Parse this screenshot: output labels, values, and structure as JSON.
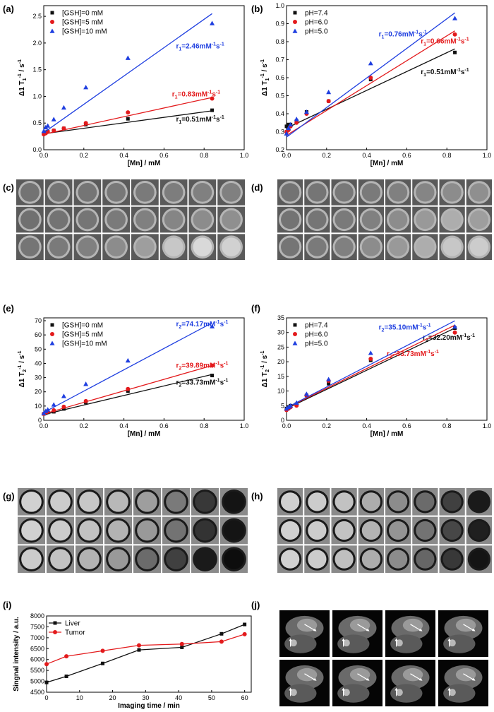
{
  "panel_labels": [
    "(a)",
    "(b)",
    "(c)",
    "(d)",
    "(e)",
    "(f)",
    "(g)",
    "(h)",
    "(i)",
    "(j)"
  ],
  "colors": {
    "black": "#111111",
    "red": "#e31a1c",
    "blue": "#1f3fe0"
  },
  "chart_data": [
    {
      "id": "a",
      "type": "scatter",
      "xlabel": "[Mn] / mM",
      "ylabel_main": "Δ1 T",
      "ylabel_sub": "1",
      "ylabel_sup": "-1",
      "ylabel_tail": " / s",
      "ylabel_tail_sup": "-1",
      "xlim": [
        0,
        1.0
      ],
      "ylim": [
        0,
        2.7
      ],
      "xticks": [
        "0.0",
        "0.2",
        "0.4",
        "0.6",
        "0.8",
        "1.0"
      ],
      "xtick_values": [
        0,
        0.2,
        0.4,
        0.6,
        0.8,
        1.0
      ],
      "yticks": [
        "0.0",
        "0.5",
        "1.0",
        "1.5",
        "2.0",
        "2.5"
      ],
      "ytick_values": [
        0,
        0.5,
        1.0,
        1.5,
        2.0,
        2.5
      ],
      "legend": "top-left",
      "series": [
        {
          "name": "[GSH]=0 mM",
          "color": "black",
          "marker": "square",
          "x": [
            0,
            0.01,
            0.02,
            0.05,
            0.1,
            0.21,
            0.42,
            0.84
          ],
          "y": [
            0.3,
            0.33,
            0.34,
            0.36,
            0.4,
            0.47,
            0.58,
            0.74
          ],
          "fit": [
            0.3,
            0.73
          ],
          "annotation": {
            "r": "r",
            "sub": "1",
            "value": "=0.51mM",
            "sup1": "-1",
            "s": "s",
            "sup2": "-1",
            "ax": 0.66,
            "ay": 0.53
          }
        },
        {
          "name": "[GSH]=5 mM",
          "color": "red",
          "marker": "circle",
          "x": [
            0,
            0.01,
            0.02,
            0.05,
            0.1,
            0.21,
            0.42,
            0.84
          ],
          "y": [
            0.29,
            0.31,
            0.34,
            0.36,
            0.4,
            0.5,
            0.7,
            0.96
          ],
          "fit": [
            0.29,
            0.98
          ],
          "annotation": {
            "r": "r",
            "sub": "1",
            "value": "=0.83mM",
            "sup1": "-1",
            "s": "s",
            "sup2": "-1",
            "ax": 0.64,
            "ay": 1.0
          }
        },
        {
          "name": "[GSH]=10 mM",
          "color": "blue",
          "marker": "triangle",
          "x": [
            0,
            0.01,
            0.02,
            0.05,
            0.1,
            0.21,
            0.42,
            0.84
          ],
          "y": [
            0.35,
            0.42,
            0.45,
            0.57,
            0.79,
            1.17,
            1.72,
            2.37
          ],
          "fit": [
            0.32,
            2.55
          ],
          "annotation": {
            "r": "r",
            "sub": "1",
            "value": "=2.46mM",
            "sup1": "-1",
            "s": "s",
            "sup2": "-1",
            "ax": 0.66,
            "ay": 1.9
          }
        }
      ]
    },
    {
      "id": "b",
      "type": "scatter",
      "xlabel": "[Mn] / mM",
      "ylabel_main": "Δ1 T",
      "ylabel_sub": "1",
      "ylabel_sup": "-1",
      "ylabel_tail": " / s",
      "ylabel_tail_sup": "-1",
      "xlim": [
        0,
        1.0
      ],
      "ylim": [
        0.2,
        1.0
      ],
      "xticks": [
        "0.0",
        "0.2",
        "0.4",
        "0.6",
        "0.8",
        "1.0"
      ],
      "xtick_values": [
        0,
        0.2,
        0.4,
        0.6,
        0.8,
        1.0
      ],
      "yticks": [
        "0.2",
        "0.3",
        "0.4",
        "0.5",
        "0.6",
        "0.7",
        "0.8",
        "0.9",
        "1.0"
      ],
      "ytick_values": [
        0.2,
        0.3,
        0.4,
        0.5,
        0.6,
        0.7,
        0.8,
        0.9,
        1.0
      ],
      "legend": "top-left",
      "series": [
        {
          "name": "pH=7.4",
          "color": "black",
          "marker": "square",
          "x": [
            0,
            0.01,
            0.02,
            0.05,
            0.1,
            0.21,
            0.42,
            0.84
          ],
          "y": [
            0.33,
            0.34,
            0.34,
            0.36,
            0.41,
            0.47,
            0.59,
            0.74
          ],
          "fit": [
            0.32,
            0.76
          ],
          "annotation": {
            "r": "r",
            "sub": "1",
            "value": "=0.51mM",
            "sup1": "-1",
            "s": "s",
            "sup2": "-1",
            "ax": 0.67,
            "ay": 0.62
          }
        },
        {
          "name": "pH=6.0",
          "color": "red",
          "marker": "circle",
          "x": [
            0,
            0.01,
            0.02,
            0.05,
            0.1,
            0.21,
            0.42,
            0.84
          ],
          "y": [
            0.3,
            0.31,
            0.33,
            0.35,
            0.4,
            0.47,
            0.6,
            0.84
          ],
          "fit": [
            0.28,
            0.86
          ],
          "annotation": {
            "r": "r",
            "sub": "1",
            "value": "=0.66mM",
            "sup1": "-1",
            "s": "s",
            "sup2": "-1",
            "ax": 0.67,
            "ay": 0.79
          }
        },
        {
          "name": "pH=5.0",
          "color": "blue",
          "marker": "triangle",
          "x": [
            0,
            0.01,
            0.02,
            0.05,
            0.1,
            0.21,
            0.42,
            0.84
          ],
          "y": [
            0.29,
            0.32,
            0.34,
            0.37,
            0.41,
            0.52,
            0.68,
            0.93
          ],
          "fit": [
            0.27,
            0.96
          ],
          "annotation": {
            "r": "r",
            "sub": "1",
            "value": "=0.76mM",
            "sup1": "-1",
            "s": "s",
            "sup2": "-1",
            "ax": 0.46,
            "ay": 0.83
          }
        }
      ]
    },
    {
      "id": "e",
      "type": "scatter",
      "xlabel": "[Mn] / mM",
      "ylabel_main": "Δ1 T",
      "ylabel_sub": "2",
      "ylabel_sup": "-1",
      "ylabel_tail": " / s",
      "ylabel_tail_sup": "-1",
      "xlim": [
        0,
        1.0
      ],
      "ylim": [
        0,
        72
      ],
      "xticks": [
        "0.0",
        "0.2",
        "0.4",
        "0.6",
        "0.8",
        "1.0"
      ],
      "xtick_values": [
        0,
        0.2,
        0.4,
        0.6,
        0.8,
        1.0
      ],
      "yticks": [
        "0",
        "10",
        "20",
        "30",
        "40",
        "50",
        "60",
        "70"
      ],
      "ytick_values": [
        0,
        10,
        20,
        30,
        40,
        50,
        60,
        70
      ],
      "legend": "top-left",
      "series": [
        {
          "name": "[GSH]=0 mM",
          "color": "black",
          "marker": "square",
          "x": [
            0,
            0.01,
            0.02,
            0.05,
            0.1,
            0.21,
            0.42,
            0.84
          ],
          "y": [
            4.5,
            5,
            5.5,
            6,
            8,
            12.5,
            20.5,
            31.5
          ],
          "fit": [
            4.0,
            32.2
          ],
          "annotation": {
            "r": "r",
            "sub": "2",
            "value": "=33.73mM",
            "sup1": "-1",
            "s": "s",
            "sup2": "-1",
            "ax": 0.66,
            "ay": 25
          }
        },
        {
          "name": "[GSH]=5 mM",
          "color": "red",
          "marker": "circle",
          "x": [
            0,
            0.01,
            0.02,
            0.05,
            0.1,
            0.21,
            0.42,
            0.84
          ],
          "y": [
            4.5,
            5.5,
            6,
            7,
            9.5,
            13.5,
            22,
            38.5
          ],
          "fit": [
            4.5,
            38.5
          ],
          "annotation": {
            "r": "r",
            "sub": "2",
            "value": "=39.89mM",
            "sup1": "-1",
            "s": "s",
            "sup2": "-1",
            "ax": 0.66,
            "ay": 37
          }
        },
        {
          "name": "[GSH]=10 mM",
          "color": "blue",
          "marker": "triangle",
          "x": [
            0,
            0.01,
            0.02,
            0.05,
            0.1,
            0.21,
            0.42,
            0.84
          ],
          "y": [
            5,
            6.5,
            7.5,
            11,
            17,
            25.5,
            42,
            66
          ],
          "fit": [
            5.5,
            68.5
          ],
          "annotation": {
            "r": "r",
            "sub": "2",
            "value": "=74.17mM",
            "sup1": "-1",
            "s": "s",
            "sup2": "-1",
            "ax": 0.66,
            "ay": 66
          }
        }
      ]
    },
    {
      "id": "f",
      "type": "scatter",
      "xlabel": "[Mn] / mM",
      "ylabel_main": "Δ1 T",
      "ylabel_sub": "2",
      "ylabel_sup": "-1",
      "ylabel_tail": " / s",
      "ylabel_tail_sup": "-1",
      "xlim": [
        0,
        1.0
      ],
      "ylim": [
        0,
        35
      ],
      "xticks": [
        "0.0",
        "0.2",
        "0.4",
        "0.6",
        "0.8",
        "1.0"
      ],
      "xtick_values": [
        0,
        0.2,
        0.4,
        0.6,
        0.8,
        1.0
      ],
      "yticks": [
        "0",
        "5",
        "10",
        "15",
        "20",
        "25",
        "30",
        "35"
      ],
      "ytick_values": [
        0,
        5,
        10,
        15,
        20,
        25,
        30,
        35
      ],
      "legend": "top-left",
      "series": [
        {
          "name": "pH=7.4",
          "color": "black",
          "marker": "square",
          "x": [
            0,
            0.01,
            0.02,
            0.05,
            0.1,
            0.21,
            0.42,
            0.84
          ],
          "y": [
            4,
            4.5,
            5,
            5.5,
            8.5,
            12.5,
            20.5,
            31.5
          ],
          "fit": [
            4.0,
            31.5
          ],
          "annotation": {
            "r": "r",
            "sub": "2",
            "value": "=32.20mM",
            "sup1": "-1",
            "s": "s",
            "sup2": "-1",
            "ax": 0.68,
            "ay": 27.5
          }
        },
        {
          "name": "pH=6.0",
          "color": "red",
          "marker": "circle",
          "x": [
            0,
            0.01,
            0.02,
            0.05,
            0.1,
            0.21,
            0.42,
            0.84
          ],
          "y": [
            3.5,
            4,
            4.5,
            5,
            8.5,
            13.5,
            21,
            30
          ],
          "fit": [
            4.2,
            32.5
          ],
          "annotation": {
            "r": "r",
            "sub": "2",
            "value": "=33.73mM",
            "sup1": "-1",
            "s": "s",
            "sup2": "-1",
            "ax": 0.5,
            "ay": 22
          }
        },
        {
          "name": "pH=5.0",
          "color": "blue",
          "marker": "triangle",
          "x": [
            0,
            0.01,
            0.02,
            0.05,
            0.1,
            0.21,
            0.42,
            0.84
          ],
          "y": [
            4,
            4.5,
            5,
            6,
            9,
            14,
            23,
            32
          ],
          "fit": [
            4.3,
            34.0
          ],
          "annotation": {
            "r": "r",
            "sub": "2",
            "value": "=35.10mM",
            "sup1": "-1",
            "s": "s",
            "sup2": "-1",
            "ax": 0.46,
            "ay": 31
          }
        }
      ]
    },
    {
      "id": "i",
      "type": "line",
      "xlabel": "Imaging time / min",
      "ylabel": "Singnal intensity / a.u.",
      "xlim": [
        0,
        62
      ],
      "ylim": [
        4500,
        8000
      ],
      "xticks": [
        "0",
        "10",
        "20",
        "30",
        "40",
        "50",
        "60"
      ],
      "xtick_values": [
        0,
        10,
        20,
        30,
        40,
        50,
        60
      ],
      "yticks": [
        "4500",
        "5000",
        "5500",
        "6000",
        "6500",
        "7000",
        "7500",
        "8000"
      ],
      "ytick_values": [
        4500,
        5000,
        5500,
        6000,
        6500,
        7000,
        7500,
        8000
      ],
      "legend": "top-left",
      "series": [
        {
          "name": "Liver",
          "color": "black",
          "marker": "square",
          "x": [
            0,
            6,
            17,
            28,
            41,
            53,
            60
          ],
          "y": [
            4950,
            5230,
            5820,
            6440,
            6560,
            7180,
            7610
          ]
        },
        {
          "name": "Tumor",
          "color": "red",
          "marker": "circle",
          "x": [
            0,
            6,
            17,
            28,
            41,
            53,
            60
          ],
          "y": [
            5790,
            6150,
            6400,
            6650,
            6710,
            6820,
            7160
          ]
        }
      ]
    }
  ],
  "phantom_grids": [
    {
      "id": "c",
      "rows": 3,
      "cols": 8,
      "intensity": [
        [
          0.45,
          0.46,
          0.46,
          0.47,
          0.48,
          0.49,
          0.5,
          0.5
        ],
        [
          0.44,
          0.45,
          0.46,
          0.48,
          0.5,
          0.52,
          0.55,
          0.56
        ],
        [
          0.46,
          0.48,
          0.5,
          0.55,
          0.62,
          0.78,
          0.85,
          0.82
        ]
      ]
    },
    {
      "id": "d",
      "rows": 3,
      "cols": 8,
      "intensity": [
        [
          0.45,
          0.46,
          0.47,
          0.48,
          0.5,
          0.52,
          0.55,
          0.56
        ],
        [
          0.45,
          0.46,
          0.48,
          0.5,
          0.55,
          0.6,
          0.68,
          0.62
        ],
        [
          0.46,
          0.48,
          0.5,
          0.55,
          0.6,
          0.68,
          0.78,
          0.8
        ]
      ]
    },
    {
      "id": "g",
      "rows": 3,
      "cols": 8,
      "intensity": [
        [
          0.82,
          0.8,
          0.78,
          0.72,
          0.62,
          0.48,
          0.22,
          0.08
        ],
        [
          0.82,
          0.8,
          0.76,
          0.7,
          0.6,
          0.45,
          0.2,
          0.08
        ],
        [
          0.8,
          0.76,
          0.7,
          0.6,
          0.42,
          0.25,
          0.1,
          0.05
        ]
      ]
    },
    {
      "id": "h",
      "rows": 3,
      "cols": 8,
      "intensity": [
        [
          0.82,
          0.8,
          0.76,
          0.68,
          0.55,
          0.42,
          0.25,
          0.1
        ],
        [
          0.82,
          0.8,
          0.76,
          0.7,
          0.58,
          0.45,
          0.28,
          0.12
        ],
        [
          0.82,
          0.8,
          0.75,
          0.68,
          0.55,
          0.4,
          0.22,
          0.08
        ]
      ]
    }
  ],
  "mri_grid": {
    "id": "j",
    "rows": 2,
    "cols": 4
  }
}
